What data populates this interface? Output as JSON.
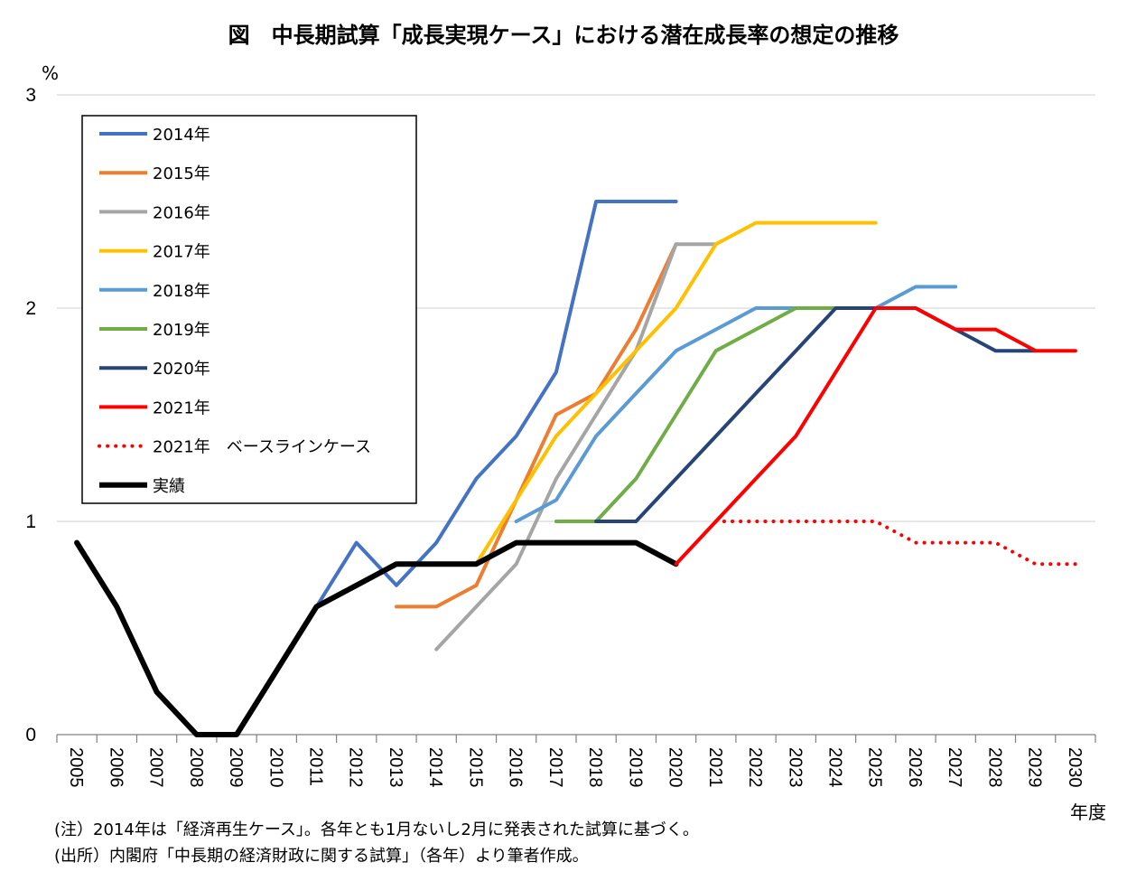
{
  "chart_data": {
    "type": "line",
    "title": "図　中長期試算「成長実現ケース」における潜在成長率の想定の推移",
    "ylabel": "%",
    "xlabel": "年度",
    "ylim": [
      0,
      3
    ],
    "yticks": [
      "0",
      "1",
      "2",
      "3"
    ],
    "grid": true,
    "legend_position": "top-left",
    "categories": [
      "2005",
      "2006",
      "2007",
      "2008",
      "2009",
      "2010",
      "2011",
      "2012",
      "2013",
      "2014",
      "2015",
      "2016",
      "2017",
      "2018",
      "2019",
      "2020",
      "2021",
      "2022",
      "2023",
      "2024",
      "2025",
      "2026",
      "2027",
      "2028",
      "2029",
      "2030"
    ],
    "series": [
      {
        "name": "2014年",
        "color": "#4472C4",
        "style": "solid",
        "values": [
          null,
          null,
          null,
          null,
          null,
          null,
          0.6,
          0.9,
          0.7,
          0.9,
          1.2,
          1.4,
          1.7,
          2.5,
          2.5,
          2.5,
          null,
          null,
          null,
          null,
          null,
          null,
          null,
          null,
          null,
          null
        ]
      },
      {
        "name": "2015年",
        "color": "#ED7D31",
        "style": "solid",
        "values": [
          null,
          null,
          null,
          null,
          null,
          null,
          null,
          null,
          0.6,
          0.6,
          0.7,
          1.1,
          1.5,
          1.6,
          1.9,
          2.3,
          null,
          null,
          null,
          null,
          null,
          null,
          null,
          null,
          null,
          null
        ]
      },
      {
        "name": "2016年",
        "color": "#A5A5A5",
        "style": "solid",
        "values": [
          null,
          null,
          null,
          null,
          null,
          null,
          null,
          null,
          null,
          0.4,
          0.6,
          0.8,
          1.2,
          1.5,
          1.8,
          2.3,
          2.3,
          null,
          null,
          null,
          null,
          null,
          null,
          null,
          null,
          null
        ]
      },
      {
        "name": "2017年",
        "color": "#FFC000",
        "style": "solid",
        "values": [
          null,
          null,
          null,
          null,
          null,
          null,
          null,
          null,
          null,
          null,
          0.8,
          1.1,
          1.4,
          1.6,
          1.8,
          2.0,
          2.3,
          2.4,
          2.4,
          2.4,
          2.4,
          null,
          null,
          null,
          null,
          null
        ]
      },
      {
        "name": "2018年",
        "color": "#5B9BD5",
        "style": "solid",
        "values": [
          null,
          null,
          null,
          null,
          null,
          null,
          null,
          null,
          null,
          null,
          null,
          1.0,
          1.1,
          1.4,
          1.6,
          1.8,
          1.9,
          2.0,
          2.0,
          2.0,
          2.0,
          2.1,
          2.1,
          null,
          null,
          null
        ]
      },
      {
        "name": "2019年",
        "color": "#70AD47",
        "style": "solid",
        "values": [
          null,
          null,
          null,
          null,
          null,
          null,
          null,
          null,
          null,
          null,
          null,
          null,
          1.0,
          1.0,
          1.2,
          1.5,
          1.8,
          1.9,
          2.0,
          2.0,
          null,
          null,
          null,
          null,
          null,
          null
        ]
      },
      {
        "name": "2020年",
        "color": "#264478",
        "style": "solid",
        "values": [
          null,
          null,
          null,
          null,
          null,
          null,
          null,
          null,
          null,
          null,
          null,
          null,
          null,
          1.0,
          1.0,
          1.2,
          1.4,
          1.6,
          1.8,
          2.0,
          2.0,
          2.0,
          1.9,
          1.8,
          1.8,
          null
        ]
      },
      {
        "name": "2021年",
        "color": "#FF0000",
        "style": "solid",
        "values": [
          null,
          null,
          null,
          null,
          null,
          null,
          null,
          null,
          null,
          null,
          null,
          null,
          null,
          null,
          null,
          0.8,
          1.0,
          1.2,
          1.4,
          1.7,
          2.0,
          2.0,
          1.9,
          1.9,
          1.8,
          1.8
        ]
      },
      {
        "name": "2021年　ベースラインケース",
        "color": "#FF0000",
        "style": "dotted",
        "values": [
          null,
          null,
          null,
          null,
          null,
          null,
          null,
          null,
          null,
          null,
          null,
          null,
          null,
          null,
          null,
          null,
          1.0,
          1.0,
          1.0,
          1.0,
          1.0,
          0.9,
          0.9,
          0.9,
          0.8,
          0.8
        ]
      },
      {
        "name": "実績",
        "color": "#000000",
        "style": "bold",
        "values": [
          0.9,
          0.6,
          0.2,
          0.0,
          0.0,
          0.3,
          0.6,
          0.7,
          0.8,
          0.8,
          0.8,
          0.9,
          0.9,
          0.9,
          0.9,
          0.8,
          null,
          null,
          null,
          null,
          null,
          null,
          null,
          null,
          null,
          null
        ]
      }
    ]
  },
  "notes": [
    "(注）2014年は「経済再生ケース」。各年とも1月ないし2月に発表された試算に基づく。",
    "(出所）内閣府「中長期の経済財政に関する試算」（各年）より筆者作成。"
  ]
}
